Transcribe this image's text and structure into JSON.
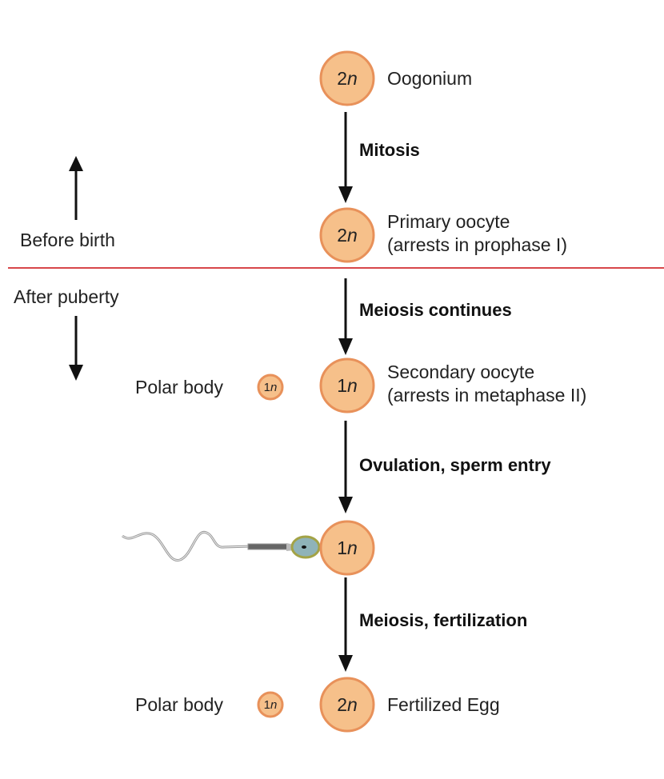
{
  "colors": {
    "cell_fill": "#f6c08a",
    "cell_stroke": "#e8915a",
    "divider": "#d8474a",
    "arrow": "#111111"
  },
  "timeline": {
    "before": "Before birth",
    "after": "After puberty"
  },
  "cells": [
    {
      "num": "2",
      "var": "n",
      "label1": "Oogonium",
      "label2": ""
    },
    {
      "num": "2",
      "var": "n",
      "label1": "Primary oocyte",
      "label2": "(arrests in prophase I)"
    },
    {
      "num": "1",
      "var": "n",
      "label1": "Secondary oocyte",
      "label2": "(arrests in metaphase II)"
    },
    {
      "num": "1",
      "var": "n",
      "label1": "",
      "label2": ""
    },
    {
      "num": "2",
      "var": "n",
      "label1": "Fertilized Egg",
      "label2": ""
    }
  ],
  "steps": [
    "Mitosis",
    "Meiosis continues",
    "Ovulation, sperm entry",
    "Meiosis, fertilization"
  ],
  "polar_bodies": [
    {
      "label": "Polar body",
      "num": "1",
      "var": "n"
    },
    {
      "label": "Polar body",
      "num": "1",
      "var": "n"
    }
  ]
}
